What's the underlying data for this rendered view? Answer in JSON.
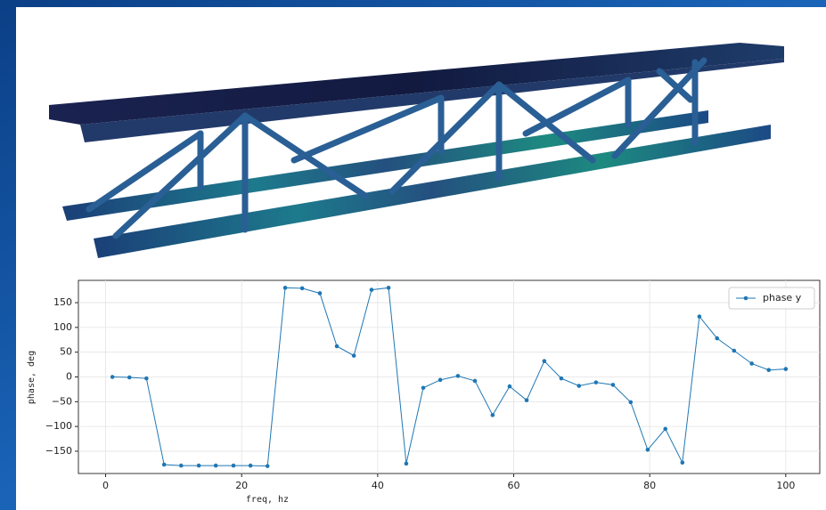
{
  "chart_data": {
    "type": "line",
    "xlabel": "freq, hz",
    "ylabel": "phase, deg",
    "x": [
      1,
      3.5,
      6,
      8.6,
      11.1,
      13.7,
      16.2,
      18.8,
      21.3,
      23.8,
      26.4,
      28.9,
      31.5,
      34,
      36.5,
      39.1,
      41.6,
      44.2,
      46.7,
      49.2,
      51.8,
      54.3,
      56.9,
      59.4,
      61.9,
      64.5,
      67,
      69.6,
      72.1,
      74.6,
      77.2,
      79.7,
      82.3,
      84.8,
      87.3,
      89.9,
      92.4,
      95,
      97.5,
      100
    ],
    "series": [
      {
        "name": "phase y",
        "color": "#1f77b4",
        "values": [
          0,
          -1,
          -3,
          -177,
          -179,
          -179,
          -179,
          -179,
          -179,
          -180,
          180,
          179,
          169,
          62,
          43,
          176,
          180,
          -175,
          -22,
          -6,
          2,
          -8,
          -77,
          -19,
          -47,
          32,
          -3,
          -18,
          -11,
          -16,
          -51,
          -147,
          -105,
          -173,
          122,
          78,
          53,
          27,
          14,
          16
        ]
      }
    ],
    "xlim": [
      -4,
      105
    ],
    "ylim": [
      -195,
      195
    ],
    "xticks": [
      0,
      20,
      40,
      60,
      80,
      100
    ],
    "yticks": [
      {
        "value": -150,
        "label": "−150"
      },
      {
        "value": -100,
        "label": "−100"
      },
      {
        "value": -50,
        "label": "−50"
      },
      0,
      50,
      100,
      150
    ],
    "grid": true,
    "legend": "upper right"
  }
}
